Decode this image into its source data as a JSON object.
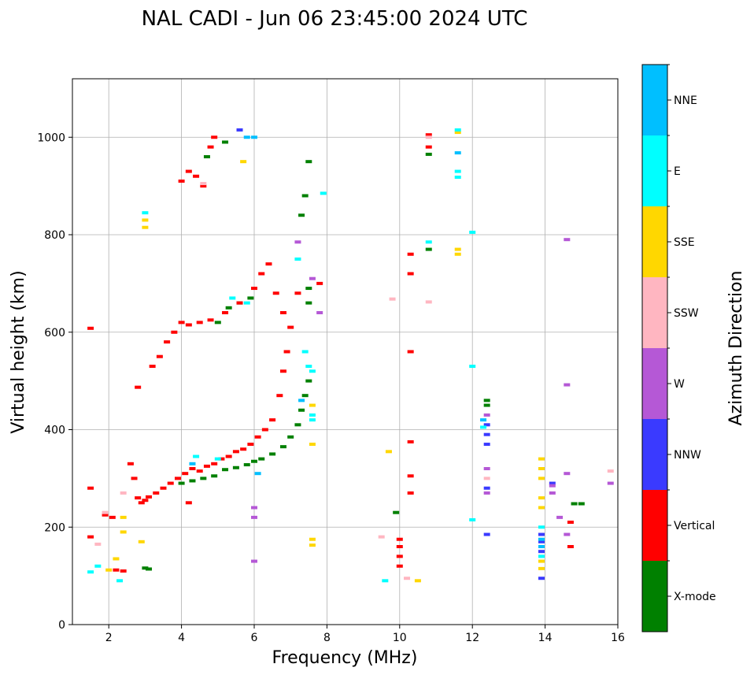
{
  "chart_data": {
    "type": "scatter",
    "title": "NAL CADI - Jun 06 23:45:00 2024 UTC",
    "xlabel": "Frequency (MHz)",
    "ylabel": "Virtual height (km)",
    "xlim": [
      1,
      16
    ],
    "ylim": [
      0,
      1120
    ],
    "xticks": [
      2,
      4,
      6,
      8,
      10,
      12,
      14,
      16
    ],
    "yticks": [
      0,
      200,
      400,
      600,
      800,
      1000
    ],
    "grid": true,
    "colorbar": {
      "label": "Azimuth Direction",
      "categories": [
        "X-mode",
        "Vertical",
        "NNW",
        "W",
        "SSW",
        "SSE",
        "E",
        "NNE"
      ],
      "colors": [
        "#008000",
        "#ff0000",
        "#3a3aff",
        "#b558d6",
        "#ffb6c1",
        "#ffd700",
        "#00ffff",
        "#00bfff"
      ]
    },
    "series": [
      {
        "name": "X-mode",
        "points": [
          [
            3.0,
            116
          ],
          [
            3.1,
            114
          ],
          [
            4.0,
            290
          ],
          [
            4.3,
            295
          ],
          [
            4.6,
            300
          ],
          [
            4.9,
            305
          ],
          [
            5.2,
            318
          ],
          [
            5.5,
            322
          ],
          [
            5.8,
            328
          ],
          [
            6.0,
            335
          ],
          [
            6.2,
            340
          ],
          [
            6.5,
            350
          ],
          [
            6.8,
            365
          ],
          [
            7.0,
            385
          ],
          [
            7.2,
            410
          ],
          [
            7.3,
            440
          ],
          [
            7.4,
            470
          ],
          [
            7.5,
            500
          ],
          [
            7.3,
            840
          ],
          [
            7.4,
            880
          ],
          [
            7.5,
            950
          ],
          [
            5.0,
            620
          ],
          [
            5.3,
            650
          ],
          [
            5.6,
            660
          ],
          [
            5.9,
            670
          ],
          [
            4.7,
            960
          ],
          [
            5.2,
            990
          ],
          [
            9.9,
            230
          ],
          [
            10.8,
            965
          ],
          [
            10.8,
            770
          ],
          [
            12.4,
            460
          ],
          [
            12.4,
            450
          ],
          [
            14.8,
            248
          ],
          [
            15.0,
            248
          ],
          [
            7.5,
            690
          ],
          [
            7.5,
            660
          ]
        ]
      },
      {
        "name": "Vertical",
        "points": [
          [
            1.5,
            280
          ],
          [
            1.5,
            180
          ],
          [
            1.9,
            225
          ],
          [
            2.1,
            220
          ],
          [
            2.2,
            112
          ],
          [
            2.4,
            110
          ],
          [
            2.6,
            330
          ],
          [
            2.7,
            300
          ],
          [
            2.8,
            260
          ],
          [
            2.9,
            250
          ],
          [
            3.0,
            255
          ],
          [
            3.1,
            262
          ],
          [
            3.3,
            270
          ],
          [
            3.5,
            280
          ],
          [
            3.7,
            290
          ],
          [
            3.9,
            300
          ],
          [
            4.1,
            310
          ],
          [
            4.3,
            320
          ],
          [
            4.5,
            315
          ],
          [
            4.7,
            325
          ],
          [
            4.9,
            330
          ],
          [
            5.1,
            340
          ],
          [
            5.3,
            345
          ],
          [
            5.5,
            355
          ],
          [
            5.7,
            360
          ],
          [
            5.9,
            370
          ],
          [
            6.1,
            385
          ],
          [
            6.3,
            400
          ],
          [
            6.5,
            420
          ],
          [
            6.7,
            470
          ],
          [
            6.8,
            520
          ],
          [
            6.9,
            560
          ],
          [
            3.2,
            530
          ],
          [
            3.4,
            550
          ],
          [
            3.6,
            580
          ],
          [
            3.8,
            600
          ],
          [
            4.0,
            620
          ],
          [
            4.2,
            615
          ],
          [
            4.5,
            620
          ],
          [
            4.8,
            625
          ],
          [
            5.2,
            640
          ],
          [
            5.6,
            660
          ],
          [
            6.0,
            690
          ],
          [
            6.2,
            720
          ],
          [
            6.4,
            740
          ],
          [
            6.6,
            680
          ],
          [
            6.8,
            640
          ],
          [
            7.0,
            610
          ],
          [
            7.2,
            680
          ],
          [
            4.0,
            910
          ],
          [
            4.2,
            930
          ],
          [
            4.4,
            920
          ],
          [
            4.6,
            900
          ],
          [
            4.8,
            980
          ],
          [
            4.9,
            1000
          ],
          [
            1.5,
            608
          ],
          [
            2.8,
            487
          ],
          [
            10.0,
            120
          ],
          [
            10.0,
            140
          ],
          [
            10.0,
            160
          ],
          [
            10.0,
            175
          ],
          [
            10.3,
            560
          ],
          [
            10.3,
            720
          ],
          [
            10.3,
            760
          ],
          [
            10.3,
            375
          ],
          [
            10.3,
            305
          ],
          [
            10.3,
            270
          ],
          [
            10.8,
            1005
          ],
          [
            10.8,
            980
          ],
          [
            14.7,
            210
          ],
          [
            14.7,
            160
          ],
          [
            7.8,
            700
          ],
          [
            4.2,
            250
          ]
        ]
      },
      {
        "name": "NNW",
        "points": [
          [
            12.4,
            410
          ],
          [
            12.4,
            390
          ],
          [
            12.4,
            370
          ],
          [
            12.4,
            280
          ],
          [
            12.4,
            185
          ],
          [
            13.9,
            185
          ],
          [
            13.9,
            170
          ],
          [
            13.9,
            150
          ],
          [
            13.9,
            95
          ],
          [
            14.2,
            290
          ],
          [
            5.6,
            1015
          ]
        ]
      },
      {
        "name": "W",
        "points": [
          [
            6.0,
            220
          ],
          [
            6.0,
            240
          ],
          [
            6.0,
            130
          ],
          [
            12.4,
            430
          ],
          [
            12.4,
            320
          ],
          [
            12.4,
            270
          ],
          [
            14.2,
            270
          ],
          [
            14.2,
            285
          ],
          [
            14.6,
            790
          ],
          [
            14.6,
            310
          ],
          [
            14.6,
            185
          ],
          [
            14.6,
            492
          ],
          [
            14.4,
            220
          ],
          [
            15.8,
            290
          ],
          [
            7.2,
            785
          ],
          [
            7.6,
            710
          ],
          [
            7.8,
            640
          ]
        ]
      },
      {
        "name": "SSW",
        "points": [
          [
            1.7,
            165
          ],
          [
            2.4,
            270
          ],
          [
            4.6,
            905
          ],
          [
            9.5,
            180
          ],
          [
            9.8,
            668
          ],
          [
            10.2,
            95
          ],
          [
            10.8,
            1000
          ],
          [
            10.8,
            662
          ],
          [
            15.8,
            315
          ],
          [
            12.4,
            300
          ],
          [
            1.9,
            230
          ]
        ]
      },
      {
        "name": "SSE",
        "points": [
          [
            2.0,
            112
          ],
          [
            2.4,
            190
          ],
          [
            2.4,
            220
          ],
          [
            2.2,
            135
          ],
          [
            3.0,
            830
          ],
          [
            3.0,
            815
          ],
          [
            2.9,
            170
          ],
          [
            5.7,
            950
          ],
          [
            7.6,
            450
          ],
          [
            7.6,
            370
          ],
          [
            7.6,
            175
          ],
          [
            7.6,
            163
          ],
          [
            9.7,
            355
          ],
          [
            10.5,
            90
          ],
          [
            11.6,
            770
          ],
          [
            11.6,
            760
          ],
          [
            13.9,
            340
          ],
          [
            13.9,
            320
          ],
          [
            13.9,
            300
          ],
          [
            13.9,
            260
          ],
          [
            13.9,
            240
          ],
          [
            13.9,
            130
          ],
          [
            13.9,
            115
          ],
          [
            11.6,
            1010
          ]
        ]
      },
      {
        "name": "E",
        "points": [
          [
            1.5,
            108
          ],
          [
            1.7,
            120
          ],
          [
            2.3,
            90
          ],
          [
            3.0,
            845
          ],
          [
            4.4,
            345
          ],
          [
            5.0,
            340
          ],
          [
            5.4,
            670
          ],
          [
            5.8,
            660
          ],
          [
            7.2,
            750
          ],
          [
            7.4,
            560
          ],
          [
            7.5,
            530
          ],
          [
            7.6,
            520
          ],
          [
            7.6,
            430
          ],
          [
            7.6,
            420
          ],
          [
            7.9,
            885
          ],
          [
            9.6,
            90
          ],
          [
            10.8,
            785
          ],
          [
            11.6,
            1015
          ],
          [
            11.6,
            930
          ],
          [
            11.6,
            918
          ],
          [
            12.0,
            805
          ],
          [
            12.0,
            530
          ],
          [
            12.0,
            215
          ],
          [
            13.9,
            200
          ],
          [
            13.9,
            140
          ],
          [
            12.3,
            405
          ]
        ]
      },
      {
        "name": "NNE",
        "points": [
          [
            4.3,
            330
          ],
          [
            5.8,
            1000
          ],
          [
            6.0,
            1000
          ],
          [
            6.1,
            310
          ],
          [
            12.3,
            420
          ],
          [
            13.9,
            175
          ],
          [
            13.9,
            160
          ],
          [
            11.6,
            968
          ],
          [
            7.3,
            460
          ]
        ]
      }
    ]
  }
}
